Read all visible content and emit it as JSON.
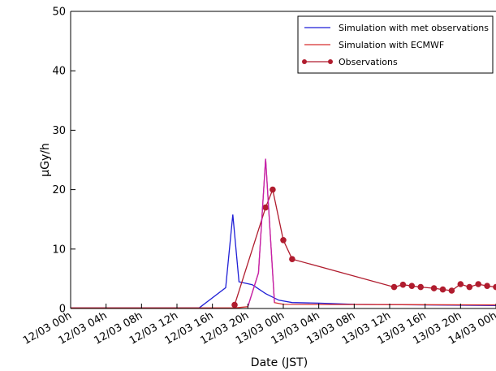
{
  "chart_data": {
    "type": "line",
    "xlabel": "Date (JST)",
    "ylabel": "μGy/h",
    "ylim": [
      0,
      50
    ],
    "yticks": [
      0,
      10,
      20,
      30,
      40,
      50
    ],
    "y_tick_labels": [
      "0",
      "10",
      "20",
      "30",
      "40",
      "50"
    ],
    "xlim": [
      0,
      48
    ],
    "x_unit": "hours since 12/03 00h",
    "x_ticks": [
      0,
      4,
      8,
      12,
      16,
      20,
      24,
      28,
      32,
      36,
      40,
      44,
      48
    ],
    "x_tick_labels": [
      "12/03 00h",
      "12/03 04h",
      "12/03 08h",
      "12/03 12h",
      "12/03 16h",
      "12/03 20h",
      "13/03 00h",
      "13/03 04h",
      "13/03 08h",
      "13/03 12h",
      "13/03 16h",
      "13/03 20h",
      "14/03 00h"
    ],
    "grid": false,
    "legend_position": "top-right",
    "series": [
      {
        "name": "Simulation with met observations",
        "color": "#1f1fd6",
        "marker": "none",
        "points": [
          [
            0,
            0.1
          ],
          [
            14.5,
            0.1
          ],
          [
            17.5,
            3.5
          ],
          [
            18.3,
            15.8
          ],
          [
            19.0,
            4.5
          ],
          [
            20.5,
            4.0
          ],
          [
            22.0,
            2.5
          ],
          [
            23.5,
            1.4
          ],
          [
            25.0,
            1.0
          ],
          [
            28.0,
            0.9
          ],
          [
            32.0,
            0.7
          ],
          [
            40.0,
            0.6
          ],
          [
            48.0,
            0.5
          ]
        ]
      },
      {
        "name": "Simulation with ECMWF",
        "color": "#d62d2d",
        "marker": "none",
        "points": [
          [
            0,
            0.1
          ],
          [
            18.5,
            0.1
          ],
          [
            20.0,
            0.3
          ],
          [
            21.2,
            6.0
          ],
          [
            22.0,
            25.2
          ],
          [
            23.0,
            1.0
          ],
          [
            24.0,
            0.7
          ],
          [
            48.0,
            0.6
          ]
        ]
      },
      {
        "name": "Observations",
        "color": "#b01c2e",
        "marker": "circle",
        "points": [
          [
            18.5,
            0.6
          ],
          [
            22.0,
            17.0
          ],
          [
            22.8,
            20.0
          ],
          [
            24.0,
            11.5
          ],
          [
            25.0,
            8.3
          ],
          [
            36.5,
            3.6
          ],
          [
            37.5,
            4.0
          ],
          [
            38.5,
            3.8
          ],
          [
            39.5,
            3.6
          ],
          [
            41.0,
            3.4
          ],
          [
            42.0,
            3.2
          ],
          [
            43.0,
            3.0
          ],
          [
            44.0,
            4.1
          ],
          [
            45.0,
            3.6
          ],
          [
            46.0,
            4.1
          ],
          [
            47.0,
            3.8
          ],
          [
            48.0,
            3.6
          ]
        ]
      }
    ]
  }
}
